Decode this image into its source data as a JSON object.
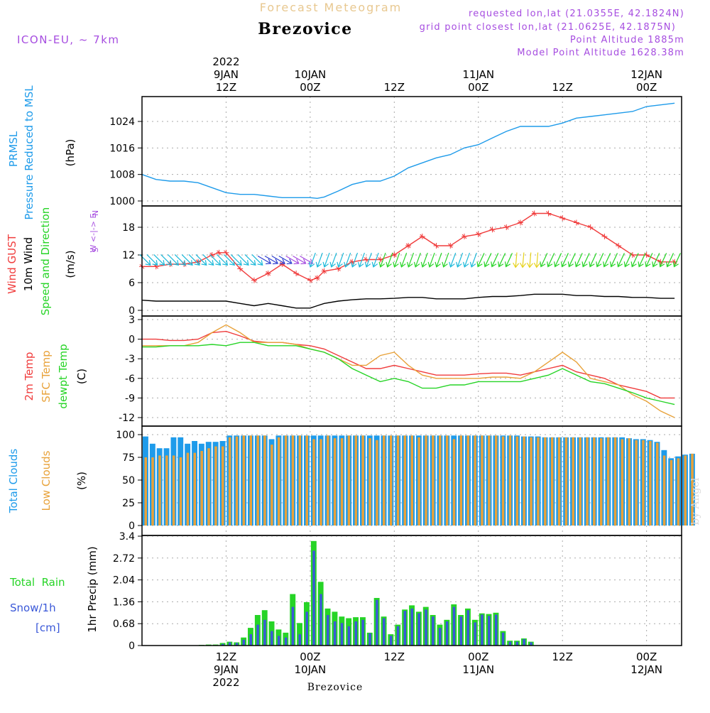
{
  "colors": {
    "blue": "#1e9bea",
    "red": "#f03c3c",
    "orange": "#e8a23a",
    "green": "#26d426",
    "violet": "#a64de0",
    "black": "#000000",
    "gray": "#aaaaaa",
    "cyan": "#1ab8d9",
    "navy": "#3040d0",
    "yellow": "#e6d21a",
    "snow": "#3a58d8"
  },
  "header": {
    "title": "Forecast Meteogram",
    "location": "Brezovice",
    "model": "ICON-EU, ~ 7km",
    "requested": "requested lon,lat (21.0355E, 42.1824N)",
    "grid_point": "grid point closest lon,lat (21.0625E, 42.1875N)",
    "point_altitude": "Point Altitude 1885m",
    "model_altitude": "Model Point Altitude 1628.38m",
    "watermark": "by Angel",
    "footer_location": "Brezovice"
  },
  "time_axis": {
    "top_labels": [
      {
        "hour": 12,
        "lines": [
          "2022",
          "9JAN",
          "12Z"
        ]
      },
      {
        "hour": 24,
        "lines": [
          "10JAN",
          "00Z"
        ]
      },
      {
        "hour": 36,
        "lines": [
          "12Z"
        ]
      },
      {
        "hour": 48,
        "lines": [
          "11JAN",
          "00Z"
        ]
      },
      {
        "hour": 60,
        "lines": [
          "12Z"
        ]
      },
      {
        "hour": 72,
        "lines": [
          "12JAN",
          "00Z"
        ]
      }
    ],
    "bottom_labels": [
      {
        "hour": 12,
        "lines": [
          "12Z",
          "9JAN",
          "2022"
        ]
      },
      {
        "hour": 24,
        "lines": [
          "00Z",
          "10JAN"
        ]
      },
      {
        "hour": 36,
        "lines": [
          "12Z"
        ]
      },
      {
        "hour": 48,
        "lines": [
          "00Z",
          "11JAN"
        ]
      },
      {
        "hour": 60,
        "lines": [
          "12Z"
        ]
      },
      {
        "hour": 72,
        "lines": [
          "00Z",
          "12JAN"
        ]
      }
    ],
    "hours_start": 0,
    "hours_end": 77
  },
  "chart_data": [
    {
      "type": "line",
      "panel": "pressure",
      "title": "PRMSL Pressure Reduced to MSL",
      "ylabel_lines": [
        "PRMSL",
        "Pressure Reduced to MSL"
      ],
      "unit": "(hPa)",
      "ylim": [
        998,
        1030
      ],
      "yticks": [
        1000,
        1008,
        1016,
        1024
      ],
      "x": [
        0,
        2,
        4,
        6,
        8,
        10,
        12,
        14,
        16,
        18,
        20,
        22,
        24,
        25,
        26,
        28,
        30,
        32,
        34,
        36,
        38,
        40,
        42,
        44,
        46,
        48,
        50,
        52,
        54,
        56,
        58,
        60,
        62,
        64,
        66,
        68,
        70,
        72,
        74,
        76
      ],
      "series": [
        {
          "name": "PRMSL",
          "values": [
            1008,
            1006.5,
            1006,
            1006,
            1005.5,
            1004,
            1002.5,
            1002,
            1002,
            1001.5,
            1001,
            1001,
            1001,
            1000.8,
            1001.2,
            1003,
            1005,
            1006,
            1006,
            1007.5,
            1010,
            1011.5,
            1013,
            1014,
            1016,
            1017,
            1019,
            1021,
            1022.5,
            1022.5,
            1022.5,
            1023.5,
            1025,
            1025.5,
            1026,
            1026.5,
            1027,
            1028.5,
            1029,
            1029.5
          ]
        }
      ]
    },
    {
      "type": "line",
      "panel": "wind",
      "title": "Wind GUST / 10m Wind Speed and Direction",
      "ylabel_lines": [
        "Wind GUST",
        "10m Wind",
        "Speed and Direction"
      ],
      "unit": "(m/s)",
      "compass": [
        "N",
        "W <-|-> E",
        "S"
      ],
      "ylim": [
        0,
        22
      ],
      "yticks": [
        0,
        6,
        12,
        18
      ],
      "x": [
        0,
        2,
        4,
        6,
        8,
        10,
        11,
        12,
        14,
        16,
        18,
        20,
        22,
        24,
        25,
        26,
        28,
        30,
        32,
        34,
        36,
        38,
        40,
        42,
        44,
        46,
        48,
        50,
        52,
        54,
        56,
        58,
        60,
        62,
        64,
        66,
        68,
        70,
        72,
        74,
        76
      ],
      "series": [
        {
          "name": "Wind GUST",
          "color_key": "red",
          "values": [
            9.5,
            9.5,
            10,
            10,
            10.5,
            12,
            12.5,
            12.5,
            9,
            6.5,
            8,
            10,
            8,
            6.5,
            7,
            8.5,
            9,
            10.5,
            11,
            11,
            12,
            14,
            16,
            14,
            14,
            16,
            16.5,
            17.5,
            18,
            19,
            21,
            21,
            20,
            19,
            18,
            16,
            14,
            12,
            12,
            10.5,
            10.5
          ]
        },
        {
          "name": "10m Wind",
          "color_key": "black",
          "values": [
            2.2,
            2,
            2,
            2,
            2,
            2,
            2,
            2,
            1.5,
            1,
            1.5,
            1,
            0.5,
            0.5,
            1,
            1.5,
            2,
            2.3,
            2.5,
            2.5,
            2.6,
            2.8,
            2.8,
            2.5,
            2.5,
            2.5,
            2.8,
            3,
            3,
            3.2,
            3.5,
            3.5,
            3.5,
            3.2,
            3.2,
            3,
            3,
            2.8,
            2.8,
            2.6,
            2.6
          ]
        }
      ],
      "barbs": {
        "name": "10m wind direction",
        "color_keys": [
          "cyan",
          "navy",
          "violet",
          "green",
          "yellow"
        ]
      }
    },
    {
      "type": "line",
      "panel": "temperature",
      "title": "2m Temp / SFC Temp / dewpt Temp",
      "ylabel_lines": [
        "2m Temp",
        "SFC Temp",
        "dewpt Temp"
      ],
      "unit": "(C)",
      "ylim": [
        -13,
        3.5
      ],
      "yticks": [
        -12,
        -9,
        -6,
        -3,
        0,
        3
      ],
      "x": [
        0,
        2,
        4,
        6,
        8,
        10,
        12,
        14,
        16,
        18,
        20,
        22,
        24,
        26,
        28,
        30,
        32,
        34,
        36,
        38,
        40,
        42,
        44,
        46,
        48,
        50,
        52,
        54,
        56,
        58,
        60,
        62,
        64,
        66,
        68,
        70,
        72,
        74,
        76
      ],
      "series": [
        {
          "name": "2m Temp",
          "color_key": "red",
          "values": [
            0,
            0,
            -0.2,
            -0.2,
            0,
            1,
            1.2,
            0.5,
            -0.3,
            -0.5,
            -0.5,
            -0.8,
            -1,
            -1.5,
            -2.5,
            -3.5,
            -4.5,
            -4.5,
            -4,
            -4.5,
            -5,
            -5.5,
            -5.5,
            -5.5,
            -5.3,
            -5.2,
            -5.2,
            -5.5,
            -5,
            -4.5,
            -4,
            -5,
            -5.5,
            -6,
            -7,
            -7.5,
            -8,
            -9,
            -9
          ]
        },
        {
          "name": "SFC Temp",
          "color_key": "orange",
          "values": [
            -1,
            -1,
            -1,
            -1,
            -0.5,
            1,
            2.2,
            1,
            -0.5,
            -0.5,
            -0.5,
            -0.8,
            -1.5,
            -2,
            -3,
            -4,
            -4,
            -2.5,
            -2,
            -4,
            -5.5,
            -6,
            -6,
            -6,
            -6,
            -5.8,
            -5.8,
            -6,
            -5,
            -3.5,
            -2,
            -3.5,
            -6,
            -6.5,
            -7,
            -8.5,
            -9.5,
            -11,
            -12
          ]
        },
        {
          "name": "dewpt Temp",
          "color_key": "green",
          "values": [
            -1.2,
            -1.2,
            -1,
            -1,
            -1,
            -0.8,
            -1,
            -0.5,
            -0.5,
            -1,
            -1,
            -1,
            -1.5,
            -2,
            -3,
            -4.5,
            -5.5,
            -6.5,
            -6,
            -6.5,
            -7.5,
            -7.5,
            -7,
            -7,
            -6.5,
            -6.5,
            -6.5,
            -6.5,
            -6,
            -5.5,
            -4.5,
            -5.5,
            -6.5,
            -6.8,
            -7.5,
            -8.2,
            -9,
            -9.5,
            -10
          ]
        }
      ]
    },
    {
      "type": "bar",
      "panel": "clouds",
      "title": "Total Clouds / Low Clouds",
      "ylabel_lines": [
        "Total Clouds",
        "Low Clouds"
      ],
      "unit": "(%)",
      "ylim": [
        0,
        100
      ],
      "yticks": [
        0,
        25,
        50,
        75,
        100
      ],
      "x_start": 0,
      "x_step": 1,
      "series": [
        {
          "name": "Total Clouds",
          "color_key": "blue",
          "values": [
            98,
            90,
            85,
            85,
            97,
            97,
            90,
            93,
            90,
            92,
            92,
            93,
            99,
            99,
            99,
            99,
            99,
            99,
            95,
            99,
            99,
            99,
            99,
            99,
            99,
            99,
            99,
            99,
            99,
            99,
            99,
            99,
            99,
            99,
            99,
            99,
            99,
            99,
            99,
            99,
            99,
            99,
            99,
            99,
            99,
            99,
            99,
            99,
            99,
            99,
            99,
            99,
            99,
            99,
            98,
            98,
            98,
            97,
            97,
            97,
            97,
            97,
            97,
            97,
            97,
            97,
            97,
            97,
            97,
            96,
            95,
            95,
            94,
            92,
            83,
            74,
            76,
            78,
            79
          ]
        },
        {
          "name": "Low Clouds",
          "color_key": "orange",
          "values": [
            75,
            75,
            77,
            77,
            77,
            75,
            80,
            80,
            82,
            85,
            87,
            87,
            97,
            98,
            99,
            99,
            99,
            99,
            89,
            97,
            99,
            99,
            99,
            99,
            95,
            95,
            99,
            96,
            96,
            99,
            99,
            99,
            96,
            94,
            99,
            99,
            99,
            99,
            99,
            97,
            99,
            99,
            99,
            99,
            95,
            99,
            99,
            99,
            99,
            99,
            99,
            98,
            99,
            98,
            98,
            97,
            97,
            97,
            97,
            97,
            97,
            97,
            97,
            97,
            97,
            96,
            97,
            97,
            95,
            96,
            94,
            94,
            93,
            91,
            77,
            72,
            74,
            77,
            79
          ]
        }
      ]
    },
    {
      "type": "bar",
      "panel": "precip",
      "title": "1hr Precip (mm)",
      "ylabel_lines": [
        "Total  Rain",
        "Snow/1h",
        "[cm]"
      ],
      "unit": "1hr Precip (mm)",
      "ylim": [
        0,
        3.4
      ],
      "yticks": [
        0,
        0.68,
        1.36,
        2.04,
        2.72,
        3.4
      ],
      "x_start": 0,
      "x_step": 1,
      "series": [
        {
          "name": "Total Rain",
          "color_key": "green",
          "values": [
            0,
            0,
            0,
            0,
            0,
            0,
            0,
            0,
            0.02,
            0.03,
            0.03,
            0.08,
            0.12,
            0.1,
            0.25,
            0.55,
            0.95,
            1.1,
            0.75,
            0.5,
            0.4,
            1.6,
            0.7,
            1.35,
            3.25,
            1.98,
            1.15,
            1.05,
            0.9,
            0.85,
            0.88,
            0.88,
            0.4,
            1.48,
            0.9,
            0.35,
            0.65,
            1.12,
            1.25,
            1.05,
            1.2,
            0.95,
            0.65,
            0.8,
            1.28,
            0.95,
            1.15,
            0.8,
            1.0,
            0.98,
            1.02,
            0.45,
            0.15,
            0.15,
            0.22,
            0.12,
            0,
            0,
            0,
            0,
            0,
            0,
            0,
            0,
            0,
            0,
            0,
            0,
            0,
            0,
            0,
            0,
            0,
            0,
            0,
            0,
            0,
            0,
            0
          ]
        },
        {
          "name": "Snow/1h",
          "color_key": "snow",
          "values": [
            0,
            0,
            0,
            0,
            0,
            0,
            0,
            0,
            0,
            0,
            0.01,
            0.05,
            0.1,
            0.08,
            0.18,
            0.35,
            0.65,
            0.8,
            0.45,
            0.3,
            0.25,
            1.2,
            0.35,
            1.05,
            2.95,
            1.6,
            0.95,
            0.75,
            0.7,
            0.6,
            0.75,
            0.8,
            0.38,
            1.42,
            0.85,
            0.3,
            0.6,
            1.08,
            1.15,
            1,
            1.12,
            0.9,
            0.55,
            0.75,
            1.2,
            0.9,
            1.1,
            0.72,
            0.96,
            0.92,
            0.96,
            0.4,
            0.12,
            0.12,
            0.2,
            0.1,
            0,
            0,
            0,
            0,
            0,
            0,
            0,
            0,
            0,
            0,
            0,
            0,
            0,
            0,
            0,
            0,
            0,
            0,
            0,
            0,
            0,
            0,
            0
          ]
        }
      ]
    }
  ]
}
